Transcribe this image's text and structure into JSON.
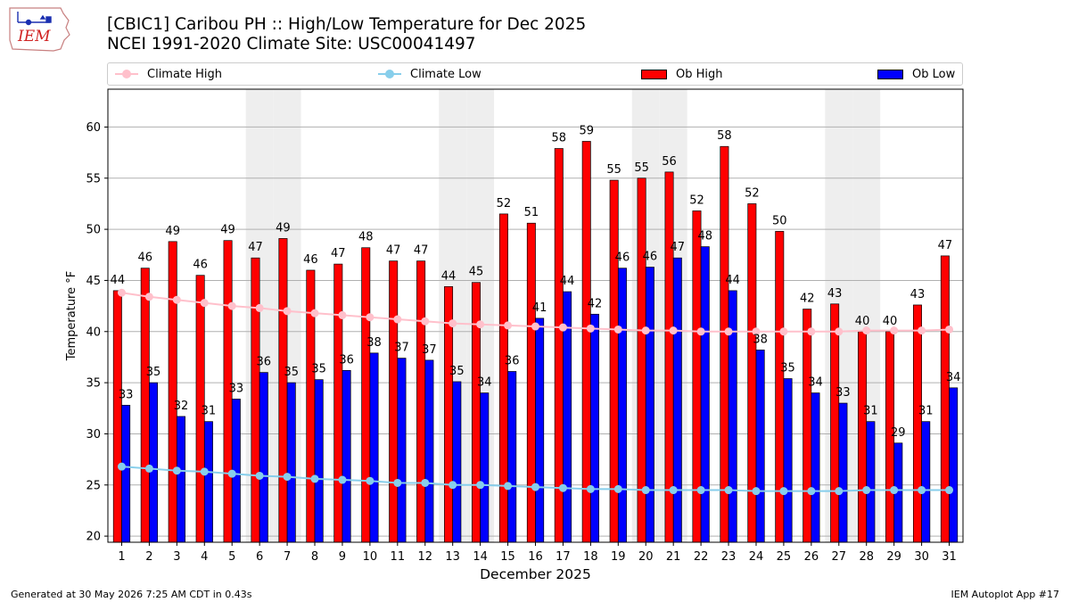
{
  "logo": {
    "text": "IEM",
    "icon": "iem-iowa-logo"
  },
  "title_line1": "[CBIC1] Caribou PH :: High/Low Temperature for Dec 2025",
  "title_line2": "NCEI 1991-2020 Climate Site: USC00041497",
  "legend": {
    "climate_high": "Climate High",
    "climate_low": "Climate Low",
    "ob_high": "Ob High",
    "ob_low": "Ob Low"
  },
  "colors": {
    "ob_high": "#ff0000",
    "ob_low": "#0000ff",
    "climate_high": "#ffc0cb",
    "climate_low": "#87ceeb",
    "weekend_shade": "#eeeeee",
    "grid": "#b0b0b0"
  },
  "footer_left": "Generated at 30 May 2026 7:25 AM CDT in 0.43s",
  "footer_right": "IEM Autoplot App #17",
  "chart_data": {
    "type": "bar",
    "xlabel": "December 2025",
    "ylabel": "Temperature °F",
    "ylim": [
      19.4,
      63.7
    ],
    "yticks": [
      20,
      25,
      30,
      35,
      40,
      45,
      50,
      55,
      60
    ],
    "grid": true,
    "legend_position": "top",
    "categories": [
      "1",
      "2",
      "3",
      "4",
      "5",
      "6",
      "7",
      "8",
      "9",
      "10",
      "11",
      "12",
      "13",
      "14",
      "15",
      "16",
      "17",
      "18",
      "19",
      "20",
      "21",
      "22",
      "23",
      "24",
      "25",
      "26",
      "27",
      "28",
      "29",
      "30",
      "31"
    ],
    "shaded_days": [
      6,
      7,
      13,
      14,
      20,
      21,
      27,
      28
    ],
    "series": [
      {
        "name": "Ob High",
        "type": "bar",
        "values": [
          44,
          46.2,
          48.8,
          45.5,
          48.9,
          47.2,
          49.1,
          46,
          46.6,
          48.2,
          46.9,
          46.9,
          44.4,
          44.8,
          51.5,
          50.6,
          57.9,
          58.6,
          54.8,
          55,
          55.6,
          51.8,
          58.1,
          52.5,
          49.8,
          42.2,
          42.7,
          40,
          40,
          42.6,
          47.4
        ],
        "labels": [
          "44",
          "46",
          "49",
          "46",
          "49",
          "47",
          "49",
          "46",
          "47",
          "48",
          "47",
          "47",
          "44",
          "45",
          "52",
          "51",
          "58",
          "59",
          "55",
          "55",
          "56",
          "52",
          "58",
          "52",
          "50",
          "42",
          "43",
          "40",
          "40",
          "43",
          "47"
        ]
      },
      {
        "name": "Ob Low",
        "type": "bar",
        "values": [
          32.8,
          35,
          31.7,
          31.2,
          33.4,
          36,
          35,
          35.3,
          36.2,
          37.9,
          37.4,
          37.2,
          35.1,
          34,
          36.1,
          41.3,
          43.9,
          41.7,
          46.2,
          46.3,
          47.2,
          48.3,
          44,
          38.2,
          35.4,
          34,
          33,
          31.2,
          29.1,
          31.2,
          34.5
        ],
        "labels": [
          "33",
          "35",
          "32",
          "31",
          "33",
          "36",
          "35",
          "35",
          "36",
          "38",
          "37",
          "37",
          "35",
          "34",
          "36",
          "41",
          "44",
          "42",
          "46",
          "46",
          "47",
          "48",
          "44",
          "38",
          "35",
          "34",
          "33",
          "31",
          "29",
          "31",
          "34"
        ]
      },
      {
        "name": "Climate High",
        "type": "line",
        "values": [
          43.8,
          43.4,
          43.1,
          42.8,
          42.5,
          42.3,
          42,
          41.8,
          41.6,
          41.4,
          41.2,
          41,
          40.8,
          40.7,
          40.6,
          40.5,
          40.4,
          40.3,
          40.2,
          40.1,
          40.1,
          40,
          40,
          40,
          40,
          40,
          40,
          40.1,
          40.1,
          40.1,
          40.2
        ]
      },
      {
        "name": "Climate Low",
        "type": "line",
        "values": [
          26.8,
          26.6,
          26.4,
          26.3,
          26.1,
          25.9,
          25.8,
          25.6,
          25.5,
          25.4,
          25.2,
          25.2,
          25,
          25,
          24.9,
          24.8,
          24.7,
          24.6,
          24.6,
          24.5,
          24.5,
          24.5,
          24.5,
          24.4,
          24.4,
          24.4,
          24.4,
          24.5,
          24.5,
          24.5,
          24.5
        ]
      }
    ]
  }
}
